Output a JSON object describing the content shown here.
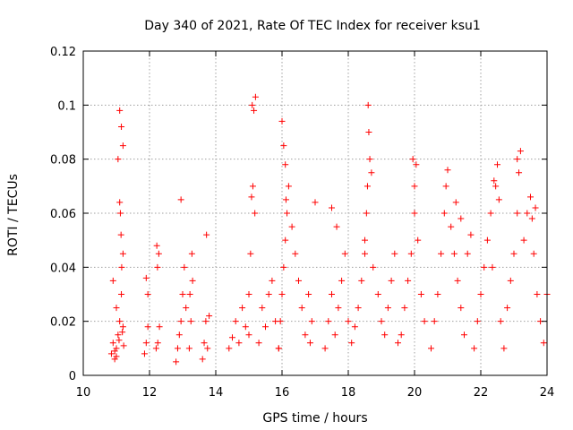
{
  "chart_data": {
    "type": "scatter",
    "title": "Day 340 of 2021, Rate Of TEC Index for receiver ksu1",
    "xlabel": "GPS time / hours",
    "ylabel": "ROTI / TECUs",
    "xlim": [
      10,
      24
    ],
    "ylim": [
      0,
      0.12
    ],
    "xticks": [
      "10",
      "12",
      "14",
      "16",
      "18",
      "20",
      "22",
      "24"
    ],
    "yticks": [
      "0",
      "0.02",
      "0.04",
      "0.06",
      "0.08",
      "0.1",
      "0.12"
    ],
    "grid": true,
    "marker": "+",
    "color": "#ff0000",
    "series": [
      {
        "x": [
          10.85,
          10.9,
          10.95,
          11.0,
          11.05,
          11.1,
          11.15,
          11.2,
          10.9,
          11.0,
          11.1,
          11.15,
          11.2,
          11.05,
          11.1,
          11.12,
          11.14,
          11.16,
          11.2,
          11.22,
          10.95,
          11.0,
          11.08,
          11.18,
          11.85,
          11.9,
          11.95,
          11.9,
          11.95,
          12.2,
          12.25,
          12.3,
          12.22,
          12.28,
          12.24,
          12.8,
          12.85,
          12.9,
          12.95,
          13.0,
          13.05,
          13.1,
          13.2,
          13.25,
          13.3,
          13.28,
          13.22,
          12.95,
          13.6,
          13.65,
          13.7,
          13.75,
          13.8,
          13.72,
          14.4,
          14.5,
          14.6,
          14.7,
          14.8,
          14.9,
          15.0,
          15.05,
          15.1,
          15.15,
          15.2,
          15.08,
          15.12,
          15.18,
          15.0,
          15.3,
          15.4,
          15.5,
          15.6,
          15.7,
          15.8,
          15.9,
          15.9,
          15.95,
          16.0,
          16.05,
          16.1,
          16.15,
          16.2,
          16.0,
          16.05,
          16.1,
          16.12,
          16.3,
          16.4,
          16.5,
          16.6,
          16.7,
          16.8,
          16.9,
          17.0,
          16.85,
          17.3,
          17.4,
          17.5,
          17.6,
          17.7,
          17.8,
          17.9,
          18.0,
          17.5,
          17.65,
          18.1,
          18.2,
          18.3,
          18.4,
          18.5,
          18.55,
          18.6,
          18.62,
          18.65,
          18.7,
          18.5,
          18.58,
          18.75,
          18.9,
          19.0,
          19.1,
          19.2,
          19.3,
          19.4,
          19.5,
          19.6,
          19.7,
          19.8,
          19.9,
          20.0,
          20.05,
          19.95,
          20.0,
          20.1,
          20.2,
          20.3,
          20.5,
          20.6,
          20.7,
          20.8,
          20.9,
          21.0,
          20.95,
          21.1,
          21.2,
          21.3,
          21.4,
          21.5,
          21.6,
          21.7,
          21.25,
          21.4,
          21.8,
          21.9,
          22.0,
          22.1,
          22.2,
          22.3,
          22.4,
          22.5,
          22.45,
          22.55,
          22.35,
          22.6,
          22.7,
          22.8,
          22.9,
          23.0,
          23.1,
          23.15,
          23.2,
          23.1,
          23.3,
          23.4,
          23.5,
          23.6,
          23.7,
          23.8,
          23.9,
          24.0,
          23.55,
          23.65
        ],
        "y": [
          0.008,
          0.012,
          0.006,
          0.01,
          0.015,
          0.02,
          0.03,
          0.045,
          0.035,
          0.025,
          0.098,
          0.092,
          0.085,
          0.08,
          0.064,
          0.06,
          0.052,
          0.04,
          0.018,
          0.011,
          0.009,
          0.007,
          0.013,
          0.016,
          0.008,
          0.012,
          0.018,
          0.036,
          0.03,
          0.01,
          0.012,
          0.018,
          0.048,
          0.045,
          0.04,
          0.005,
          0.01,
          0.015,
          0.02,
          0.03,
          0.04,
          0.025,
          0.01,
          0.02,
          0.035,
          0.045,
          0.03,
          0.065,
          0.006,
          0.012,
          0.02,
          0.01,
          0.022,
          0.052,
          0.01,
          0.014,
          0.02,
          0.012,
          0.025,
          0.018,
          0.03,
          0.045,
          0.1,
          0.098,
          0.103,
          0.066,
          0.07,
          0.06,
          0.015,
          0.012,
          0.025,
          0.018,
          0.03,
          0.035,
          0.02,
          0.01,
          0.01,
          0.02,
          0.03,
          0.04,
          0.05,
          0.06,
          0.07,
          0.094,
          0.085,
          0.078,
          0.065,
          0.055,
          0.045,
          0.035,
          0.025,
          0.015,
          0.03,
          0.02,
          0.064,
          0.012,
          0.01,
          0.02,
          0.03,
          0.015,
          0.025,
          0.035,
          0.045,
          0.02,
          0.062,
          0.055,
          0.012,
          0.018,
          0.025,
          0.035,
          0.05,
          0.06,
          0.1,
          0.09,
          0.08,
          0.075,
          0.045,
          0.07,
          0.04,
          0.03,
          0.02,
          0.015,
          0.025,
          0.035,
          0.045,
          0.012,
          0.015,
          0.025,
          0.035,
          0.045,
          0.06,
          0.078,
          0.08,
          0.07,
          0.05,
          0.03,
          0.02,
          0.01,
          0.02,
          0.03,
          0.045,
          0.06,
          0.076,
          0.07,
          0.055,
          0.045,
          0.035,
          0.025,
          0.015,
          0.045,
          0.052,
          0.064,
          0.058,
          0.01,
          0.02,
          0.03,
          0.04,
          0.05,
          0.06,
          0.072,
          0.078,
          0.07,
          0.065,
          0.04,
          0.02,
          0.01,
          0.025,
          0.035,
          0.045,
          0.06,
          0.075,
          0.083,
          0.08,
          0.05,
          0.06,
          0.066,
          0.045,
          0.03,
          0.02,
          0.012,
          0.03,
          0.058,
          0.062
        ]
      }
    ]
  }
}
